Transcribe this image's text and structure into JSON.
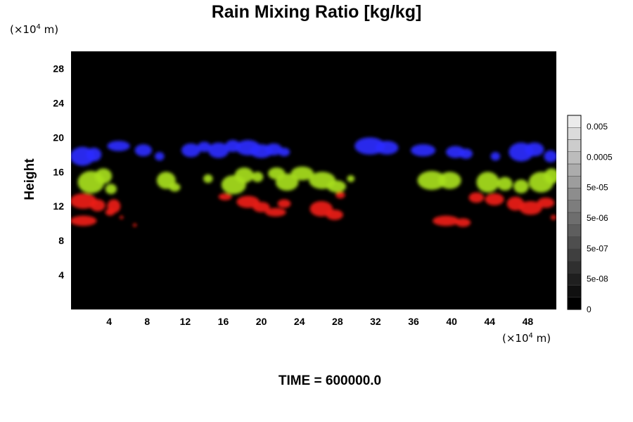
{
  "chart_data": {
    "type": "heatmap",
    "title": "Rain Mixing Ratio [kg/kg]",
    "ylabel": "Height",
    "y_unit": {
      "prefix": "(×10",
      "exp": "4",
      "suffix": " m)"
    },
    "x_unit": {
      "prefix": "(×10",
      "exp": "4",
      "suffix": " m)"
    },
    "x_ticks": [
      "4",
      "8",
      "12",
      "16",
      "20",
      "24",
      "28",
      "32",
      "36",
      "40",
      "44",
      "48"
    ],
    "y_ticks": [
      "4",
      "8",
      "12",
      "16",
      "20",
      "24",
      "28"
    ],
    "xlim": [
      0,
      51
    ],
    "ylim": [
      0,
      30
    ],
    "background": "#000000",
    "colorbar": {
      "labels": [
        "0.005",
        "0.0005",
        "5e-05",
        "5e-06",
        "5e-07",
        "5e-08",
        "0"
      ],
      "steps": 16
    },
    "layers": [
      {
        "color": "#2a2aff",
        "y_range": [
          16.5,
          20.0
        ],
        "blobs": [
          [
            1.2,
            17.8,
            1.3,
            1.1
          ],
          [
            2.4,
            18.0,
            0.8,
            0.8
          ],
          [
            5.0,
            19.0,
            1.2,
            0.6
          ],
          [
            7.6,
            18.5,
            0.9,
            0.7
          ],
          [
            9.3,
            17.8,
            0.5,
            0.5
          ],
          [
            12.6,
            18.5,
            1.0,
            0.8
          ],
          [
            14.0,
            18.9,
            0.7,
            0.6
          ],
          [
            15.5,
            18.5,
            1.1,
            0.9
          ],
          [
            17.0,
            19.0,
            0.8,
            0.7
          ],
          [
            18.6,
            18.8,
            1.3,
            0.9
          ],
          [
            20.0,
            18.4,
            1.2,
            0.8
          ],
          [
            21.3,
            18.6,
            0.9,
            0.7
          ],
          [
            22.4,
            18.3,
            0.6,
            0.5
          ],
          [
            31.4,
            19.0,
            1.6,
            1.0
          ],
          [
            33.2,
            18.8,
            1.2,
            0.8
          ],
          [
            37.0,
            18.5,
            1.3,
            0.7
          ],
          [
            40.4,
            18.3,
            1.0,
            0.7
          ],
          [
            41.5,
            18.1,
            0.7,
            0.6
          ],
          [
            44.6,
            17.8,
            0.5,
            0.5
          ],
          [
            47.3,
            18.3,
            1.3,
            1.1
          ],
          [
            48.7,
            18.6,
            1.0,
            0.8
          ],
          [
            50.4,
            17.8,
            0.7,
            0.7
          ]
        ]
      },
      {
        "color": "#a8e01c",
        "y_range": [
          13.0,
          16.5
        ],
        "blobs": [
          [
            2.1,
            14.8,
            1.4,
            1.3
          ],
          [
            3.4,
            15.5,
            0.9,
            0.9
          ],
          [
            4.2,
            14.0,
            0.6,
            0.6
          ],
          [
            10.0,
            15.0,
            1.0,
            1.0
          ],
          [
            10.9,
            14.2,
            0.6,
            0.5
          ],
          [
            14.4,
            15.2,
            0.5,
            0.5
          ],
          [
            17.1,
            14.5,
            1.3,
            1.1
          ],
          [
            18.2,
            15.6,
            1.0,
            0.9
          ],
          [
            19.6,
            15.4,
            0.6,
            0.6
          ],
          [
            21.6,
            15.8,
            0.9,
            0.7
          ],
          [
            22.7,
            14.8,
            1.2,
            1.0
          ],
          [
            24.3,
            15.8,
            1.2,
            0.8
          ],
          [
            26.4,
            15.0,
            1.4,
            1.0
          ],
          [
            27.9,
            14.3,
            1.0,
            0.7
          ],
          [
            29.4,
            15.2,
            0.4,
            0.4
          ],
          [
            37.9,
            15.0,
            1.5,
            1.1
          ],
          [
            39.8,
            15.0,
            1.2,
            1.0
          ],
          [
            43.8,
            14.8,
            1.2,
            1.2
          ],
          [
            45.6,
            14.6,
            0.8,
            0.8
          ],
          [
            47.3,
            14.3,
            0.8,
            0.8
          ],
          [
            49.4,
            14.8,
            1.3,
            1.2
          ],
          [
            50.5,
            15.5,
            0.8,
            0.9
          ]
        ]
      },
      {
        "color": "#ee1c14",
        "y_range": [
          9.5,
          13.5
        ],
        "blobs": [
          [
            1.3,
            12.6,
            1.4,
            0.9
          ],
          [
            2.8,
            12.1,
            0.8,
            0.7
          ],
          [
            4.5,
            12.0,
            0.7,
            0.8
          ],
          [
            4.1,
            11.3,
            0.5,
            0.4
          ],
          [
            1.3,
            10.3,
            1.4,
            0.6
          ],
          [
            5.3,
            10.7,
            0.2,
            0.2
          ],
          [
            6.7,
            9.8,
            0.2,
            0.2
          ],
          [
            16.2,
            13.1,
            0.7,
            0.4
          ],
          [
            18.6,
            12.5,
            1.2,
            0.7
          ],
          [
            20.0,
            11.9,
            0.9,
            0.6
          ],
          [
            21.5,
            11.3,
            1.1,
            0.5
          ],
          [
            22.4,
            12.3,
            0.7,
            0.5
          ],
          [
            26.3,
            11.7,
            1.2,
            0.9
          ],
          [
            27.7,
            11.0,
            0.9,
            0.6
          ],
          [
            28.3,
            13.3,
            0.5,
            0.4
          ],
          [
            39.4,
            10.3,
            1.4,
            0.6
          ],
          [
            41.2,
            10.1,
            0.8,
            0.5
          ],
          [
            42.6,
            13.0,
            0.8,
            0.6
          ],
          [
            44.5,
            12.8,
            1.0,
            0.7
          ],
          [
            46.7,
            12.3,
            0.9,
            0.8
          ],
          [
            48.3,
            11.8,
            1.2,
            0.8
          ],
          [
            49.9,
            12.4,
            0.9,
            0.6
          ],
          [
            50.7,
            10.7,
            0.3,
            0.3
          ]
        ]
      }
    ]
  },
  "footer": {
    "time_label": "TIME = 600000.0"
  }
}
